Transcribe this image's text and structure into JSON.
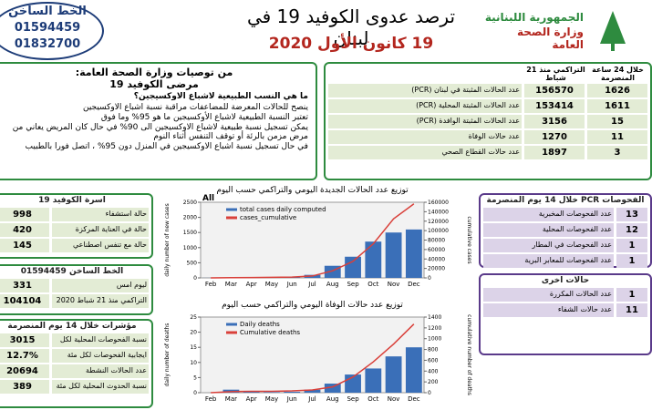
{
  "header": {
    "title": "ترصد عدوى الكوفيد 19 في لبنان",
    "date": "19 كانون الأول 2020",
    "org1": "الجمهورية اللبنانية",
    "org2": "وزارة الصحة العامة",
    "hotline_title": "الخط الساخن",
    "hotline1": "01594459",
    "hotline2": "01832700"
  },
  "summary": {
    "col_24h": "خلال 24 ساعة المنصرمة",
    "col_total": "التراكمي منذ 21 شباط",
    "rows": [
      [
        "عدد الحالات المثبتة في لبنان (PCR)",
        "1626",
        "156570"
      ],
      [
        "عدد الحالات المثبتة المحلية (PCR)",
        "1611",
        "153414"
      ],
      [
        "عدد الحالات المثبتة الوافدة (PCR)",
        "15",
        "3156"
      ],
      [
        "عدد حالات الوفاة",
        "11",
        "1270"
      ],
      [
        "عدد حالات القطاع الصحي",
        "3",
        "1897"
      ]
    ]
  },
  "advice": {
    "title": "من توصيات وزارة الصحة العامة:",
    "subtitle": "مرضى الكوفيد 19",
    "question": "ما هي النسب الطبيعية لاشباع الاوكسيجين؟",
    "bullets": [
      "ينصح للحالات المعرضة للمضاعفات مراقبة نسبة اشباع الاوكسيجين",
      "تعتبر النسبة الطبيعية لاشباع الأوكسيجين ما هو 95% وما فوق",
      "يمكن تسجيل نسبة طبيعية لاشباع الاوكسيجين الى 90% في حال كان المريض يعاني من مرض مزمن بالرئة أو توقف التنفس أثناء النوم",
      "في حال تسجيل نسبة اشباع الاوكسيجين في المنزل دون 95% ، اتصل فورا بالطبيب"
    ]
  },
  "beds": {
    "title": "اسرة الكوفيد 19",
    "rows": [
      [
        "998",
        "حالة استشفاء"
      ],
      [
        "420",
        "حالة في العناية المركزة"
      ],
      [
        "145",
        "حالة مع تنفس اصطناعي"
      ]
    ]
  },
  "hotline": {
    "title": "الخط الساخن 01594459",
    "rows": [
      [
        "331",
        "ليوم امس"
      ],
      [
        "104104",
        "التراكمي منذ 21 شباط 2020"
      ]
    ]
  },
  "indicators": {
    "title": "مؤشرات خلال 14 يوم المنصرمة",
    "rows": [
      [
        "3015",
        "نسبة الفحوصات المحلية لكل"
      ],
      [
        "12.7%",
        "ايجابية الفحوصات لكل مئة"
      ],
      [
        "20694",
        "عدد الحالات النشطة"
      ],
      [
        "389",
        "نسبة الحدوث المحلية لكل مئة"
      ]
    ]
  },
  "tests": {
    "title": "الفحوصات PCR خلال 14 يوم المنصرمة",
    "rows": [
      [
        "عدد الفحوصات المخبرية",
        "13"
      ],
      [
        "عدد الفحوصات المحلية",
        "12"
      ],
      [
        "عدد الفحوصات في المطار",
        "1"
      ],
      [
        "عدد الفحوصات للمعابر البرية",
        "1"
      ]
    ]
  },
  "other": {
    "title": "حالات اخرى",
    "rows": [
      [
        "عدد الحالات المكررة",
        "1"
      ],
      [
        "عدد حالات الشفاء",
        "11"
      ]
    ]
  },
  "chart_data": [
    {
      "type": "bar_line",
      "title": "توزيع عدد الحالات الجديدة اليومي والتراكمي حسب اليوم",
      "tag": "All",
      "ylabel": "daily number of new cases",
      "y2label": "cumulative cases",
      "categories": [
        "Feb",
        "Mar",
        "Apr",
        "May",
        "Jun",
        "Jul",
        "Aug",
        "Sep",
        "Oct",
        "Nov",
        "Dec"
      ],
      "series": [
        {
          "name": "total cases daily computed",
          "color": "#3a6fb8",
          "values": [
            2,
            10,
            10,
            10,
            20,
            100,
            400,
            700,
            1200,
            1500,
            1600
          ]
        },
        {
          "name": "cases_cumulative",
          "color": "#d9403a",
          "axis": "y2",
          "values": [
            5,
            470,
            730,
            1170,
            1780,
            4000,
            15000,
            35000,
            72000,
            125000,
            156570
          ]
        }
      ],
      "ylim": [
        0,
        2500
      ],
      "yticks": [
        0,
        500,
        1000,
        1500,
        2000,
        2500
      ],
      "y2lim": [
        0,
        160000
      ],
      "y2ticks": [
        0,
        20000,
        40000,
        60000,
        80000,
        100000,
        120000,
        140000,
        160000
      ]
    },
    {
      "type": "bar_line",
      "title": "توزيع عدد حالات الوفاة اليومي والتراكمي حسب اليوم",
      "ylabel": "daily number of deaths",
      "y2label": "cumulative number of deaths",
      "categories": [
        "Feb",
        "Mar",
        "Apr",
        "May",
        "Jun",
        "Jul",
        "Aug",
        "Sep",
        "Oct",
        "Nov",
        "Dec"
      ],
      "series": [
        {
          "name": "Daily deaths",
          "color": "#3a6fb8",
          "values": [
            0,
            1,
            0.5,
            0.2,
            0.3,
            1,
            3,
            6,
            8,
            12,
            15
          ]
        },
        {
          "name": "Cumulative deaths",
          "color": "#d9403a",
          "axis": "y2",
          "values": [
            0,
            20,
            26,
            26,
            34,
            51,
            107,
            290,
            570,
            900,
            1270
          ]
        }
      ],
      "ylim": [
        0,
        25
      ],
      "yticks": [
        0,
        5,
        10,
        15,
        20,
        25
      ],
      "y2lim": [
        0,
        1400
      ],
      "y2ticks": [
        0,
        200,
        400,
        600,
        800,
        1000,
        1200,
        1400
      ]
    }
  ]
}
